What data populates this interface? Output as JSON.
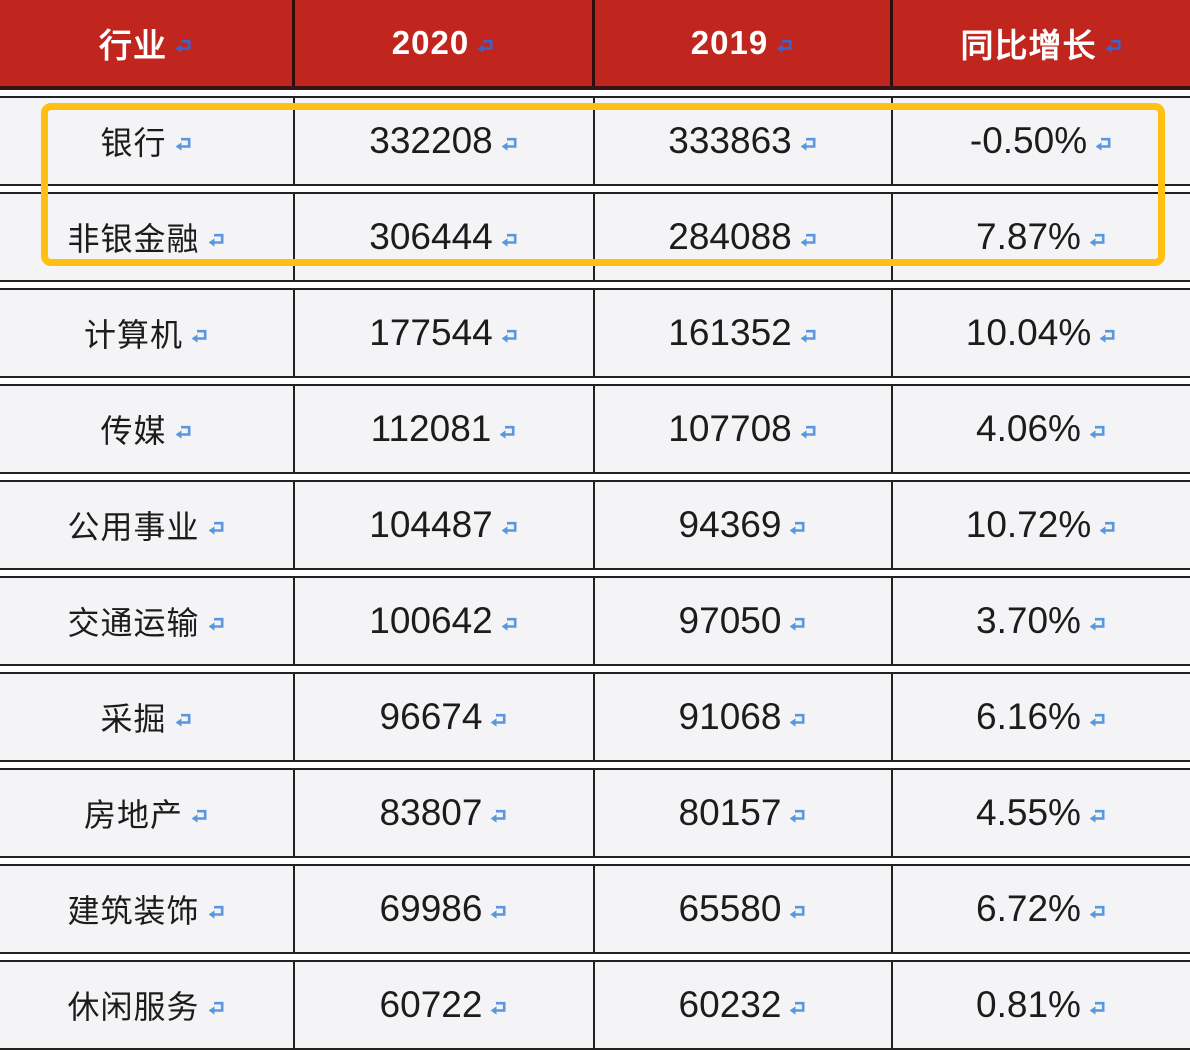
{
  "table": {
    "columns": [
      {
        "key": "industry",
        "label": "行业"
      },
      {
        "key": "y2020",
        "label": "2020"
      },
      {
        "key": "y2019",
        "label": "2019"
      },
      {
        "key": "yoy",
        "label": "同比增长"
      }
    ],
    "rows": [
      {
        "industry": "银行",
        "y2020": "332208",
        "y2019": "333863",
        "yoy": "-0.50%"
      },
      {
        "industry": "非银金融",
        "y2020": "306444",
        "y2019": "284088",
        "yoy": "7.87%"
      },
      {
        "industry": "计算机",
        "y2020": "177544",
        "y2019": "161352",
        "yoy": "10.04%"
      },
      {
        "industry": "传媒",
        "y2020": "112081",
        "y2019": "107708",
        "yoy": "4.06%"
      },
      {
        "industry": "公用事业",
        "y2020": "104487",
        "y2019": "94369",
        "yoy": "10.72%"
      },
      {
        "industry": "交通运输",
        "y2020": "100642",
        "y2019": "97050",
        "yoy": "3.70%"
      },
      {
        "industry": "采掘",
        "y2020": "96674",
        "y2019": "91068",
        "yoy": "6.16%"
      },
      {
        "industry": "房地产",
        "y2020": "83807",
        "y2019": "80157",
        "yoy": "4.55%"
      },
      {
        "industry": "建筑装饰",
        "y2020": "69986",
        "y2019": "65580",
        "yoy": "6.72%"
      },
      {
        "industry": "休闲服务",
        "y2020": "60722",
        "y2019": "60232",
        "yoy": "0.81%"
      }
    ],
    "highlighted_row_indexes": [
      0,
      1
    ]
  },
  "icons": {
    "return_mark": "paragraph-return-icon"
  },
  "colors": {
    "header_bg": "#c0261e",
    "header_text": "#ffffff",
    "row_bg": "#f4f4f6",
    "grid_line": "#212121",
    "highlight_border": "#ffc011",
    "return_mark_cell": "#5b97dc",
    "return_mark_header": "#3d63c9"
  },
  "chart_data": {
    "type": "table",
    "columns": [
      "行业",
      "2020",
      "2019",
      "同比增长"
    ],
    "rows": [
      [
        "银行",
        332208,
        333863,
        "-0.50%"
      ],
      [
        "非银金融",
        306444,
        284088,
        "7.87%"
      ],
      [
        "计算机",
        177544,
        161352,
        "10.04%"
      ],
      [
        "传媒",
        112081,
        107708,
        "4.06%"
      ],
      [
        "公用事业",
        104487,
        94369,
        "10.72%"
      ],
      [
        "交通运输",
        100642,
        97050,
        "3.70%"
      ],
      [
        "采掘",
        96674,
        91068,
        "6.16%"
      ],
      [
        "房地产",
        83807,
        80157,
        "4.55%"
      ],
      [
        "建筑装饰",
        69986,
        65580,
        "6.72%"
      ],
      [
        "休闲服务",
        60722,
        60232,
        "0.81%"
      ]
    ],
    "highlighted_rows": [
      0,
      1
    ],
    "notes": "screenshot of a document table with paragraph return marks in each cell"
  }
}
